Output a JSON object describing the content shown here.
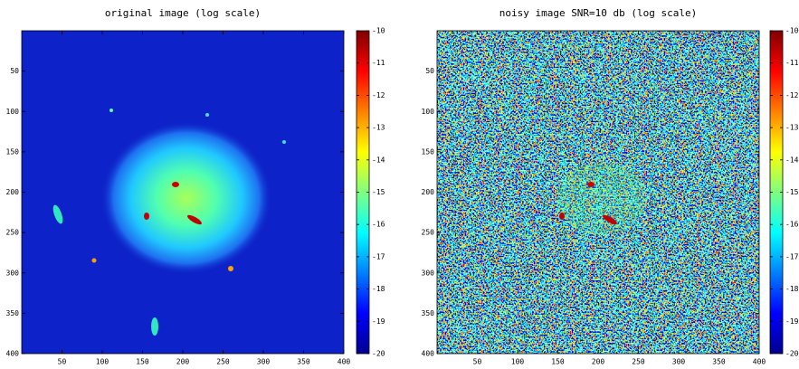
{
  "chart_data": [
    {
      "type": "image",
      "title": "original image (log scale)",
      "colormap": "jet",
      "xlim": [
        0,
        400
      ],
      "ylim": [
        400,
        0
      ],
      "xticks": [
        50,
        100,
        150,
        200,
        250,
        300,
        350,
        400
      ],
      "yticks": [
        50,
        100,
        150,
        200,
        250,
        300,
        350,
        400
      ],
      "clim": [
        -20,
        -10
      ],
      "cticks": [
        -10,
        -11,
        -12,
        -13,
        -14,
        -15,
        -16,
        -17,
        -18,
        -19,
        -20
      ]
    },
    {
      "type": "image",
      "title": "noisy image SNR=10 db (log scale)",
      "colormap": "jet",
      "xlim": [
        0,
        400
      ],
      "ylim": [
        400,
        0
      ],
      "xticks": [
        50,
        100,
        150,
        200,
        250,
        300,
        350,
        400
      ],
      "yticks": [
        50,
        100,
        150,
        200,
        250,
        300,
        350,
        400
      ],
      "clim": [
        -20,
        -10
      ],
      "cticks": [
        -10,
        -11,
        -12,
        -13,
        -14,
        -15,
        -16,
        -17,
        -18,
        -19,
        -20
      ]
    }
  ]
}
